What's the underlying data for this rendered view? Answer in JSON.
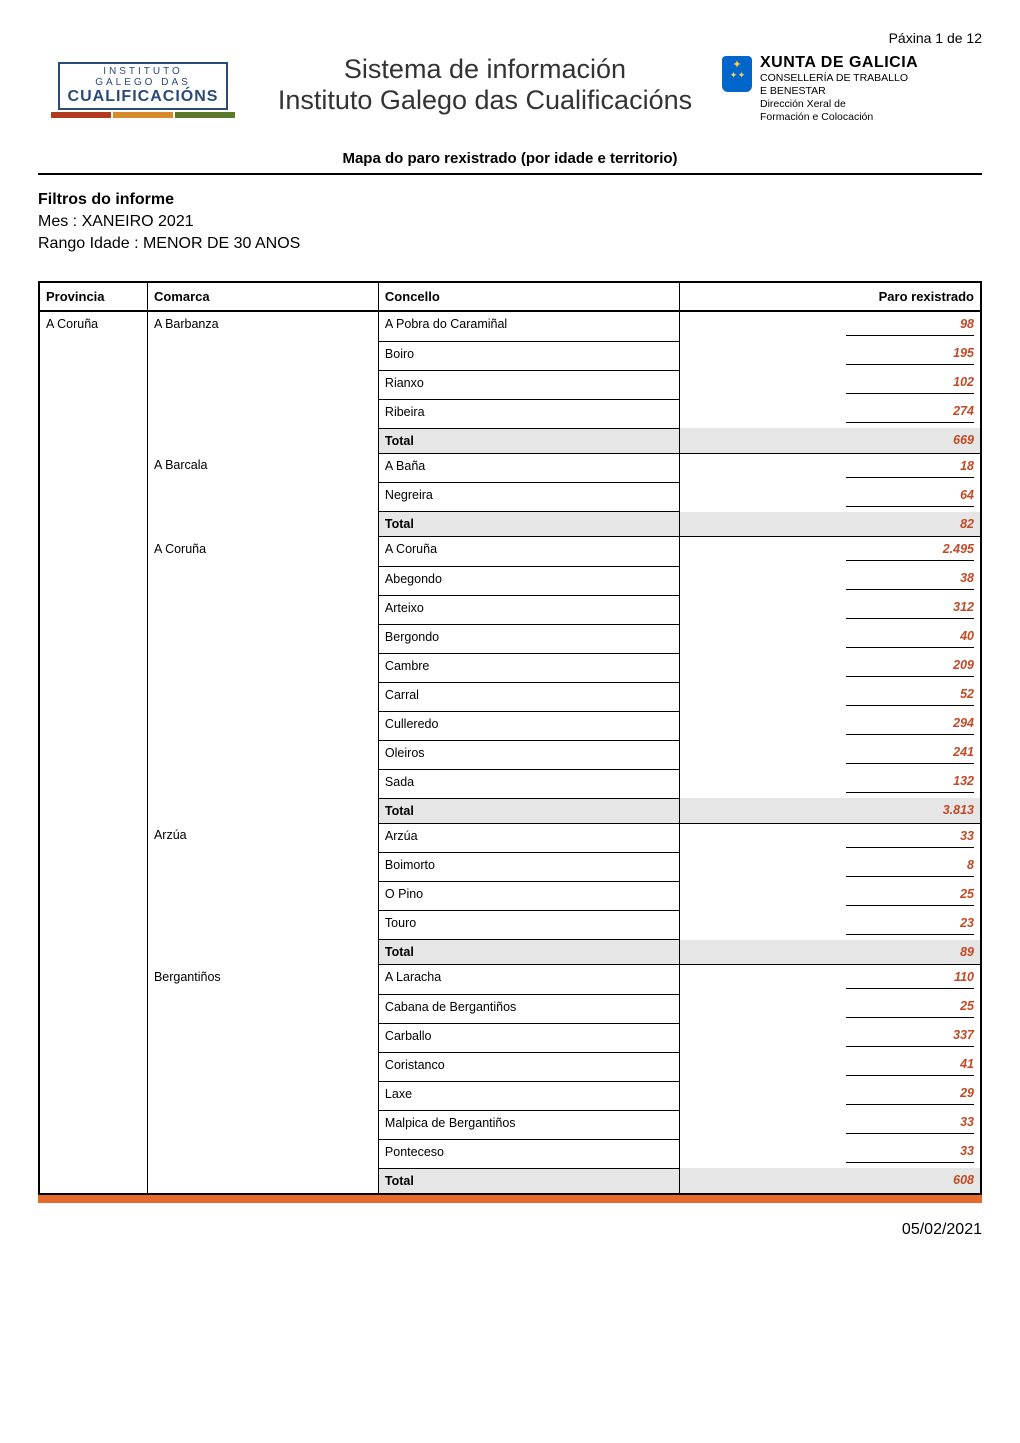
{
  "page_label": "Páxina 1 de 12",
  "logo_left": {
    "line1": "INSTITUTO",
    "line2": "GALEGO DAS",
    "line3": "CUALIFICACIÓNS",
    "border_color": "#2a4a7a",
    "bar_colors": [
      "#b23a1f",
      "#d98a2b",
      "#5a7a2a"
    ]
  },
  "title_center": {
    "line1": "Sistema de información",
    "line2": "Instituto Galego das Cualificacións"
  },
  "logo_right": {
    "shield_bg": "#0066cc",
    "shield_accent": "#ffd24d",
    "line1": "XUNTA DE GALICIA",
    "line2": "CONSELLERÍA DE TRABALLO",
    "line3": "E BENESTAR",
    "line4": "Dirección Xeral de",
    "line5": "Formación e Colocación"
  },
  "map_title": "Mapa do paro rexistrado (por idade e territorio)",
  "filters": {
    "title": "Filtros do informe",
    "mes": "Mes : XANEIRO 2021",
    "rango": "Rango Idade : MENOR DE 30 ANOS"
  },
  "headers": {
    "provincia": "Provincia",
    "comarca": "Comarca",
    "concello": "Concello",
    "paro": "Paro rexistrado"
  },
  "total_label": "Total",
  "provincia": "A Coruña",
  "comarcas": [
    {
      "name": "A Barbanza",
      "rows": [
        {
          "concello": "A Pobra do Caramiñal",
          "value": "98"
        },
        {
          "concello": "Boiro",
          "value": "195"
        },
        {
          "concello": "Rianxo",
          "value": "102"
        },
        {
          "concello": "Ribeira",
          "value": "274"
        }
      ],
      "total": "669"
    },
    {
      "name": "A Barcala",
      "rows": [
        {
          "concello": "A Baña",
          "value": "18"
        },
        {
          "concello": "Negreira",
          "value": "64"
        }
      ],
      "total": "82"
    },
    {
      "name": "A Coruña",
      "rows": [
        {
          "concello": "A Coruña",
          "value": "2.495"
        },
        {
          "concello": "Abegondo",
          "value": "38"
        },
        {
          "concello": "Arteixo",
          "value": "312"
        },
        {
          "concello": "Bergondo",
          "value": "40"
        },
        {
          "concello": "Cambre",
          "value": "209"
        },
        {
          "concello": "Carral",
          "value": "52"
        },
        {
          "concello": "Culleredo",
          "value": "294"
        },
        {
          "concello": "Oleiros",
          "value": "241"
        },
        {
          "concello": "Sada",
          "value": "132"
        }
      ],
      "total": "3.813"
    },
    {
      "name": "Arzúa",
      "rows": [
        {
          "concello": "Arzúa",
          "value": "33"
        },
        {
          "concello": "Boimorto",
          "value": "8"
        },
        {
          "concello": "O Pino",
          "value": "25"
        },
        {
          "concello": "Touro",
          "value": "23"
        }
      ],
      "total": "89"
    },
    {
      "name": "Bergantiños",
      "rows": [
        {
          "concello": "A Laracha",
          "value": "110"
        },
        {
          "concello": "Cabana de Bergantiños",
          "value": "25"
        },
        {
          "concello": "Carballo",
          "value": "337"
        },
        {
          "concello": "Coristanco",
          "value": "41"
        },
        {
          "concello": "Laxe",
          "value": "29"
        },
        {
          "concello": "Malpica de Bergantiños",
          "value": "33"
        },
        {
          "concello": "Ponteceso",
          "value": "33"
        }
      ],
      "total": "608"
    }
  ],
  "colors": {
    "value_text": "#c04a26",
    "footer_bar": "#e86a2a"
  },
  "footer_date": "05/02/2021"
}
